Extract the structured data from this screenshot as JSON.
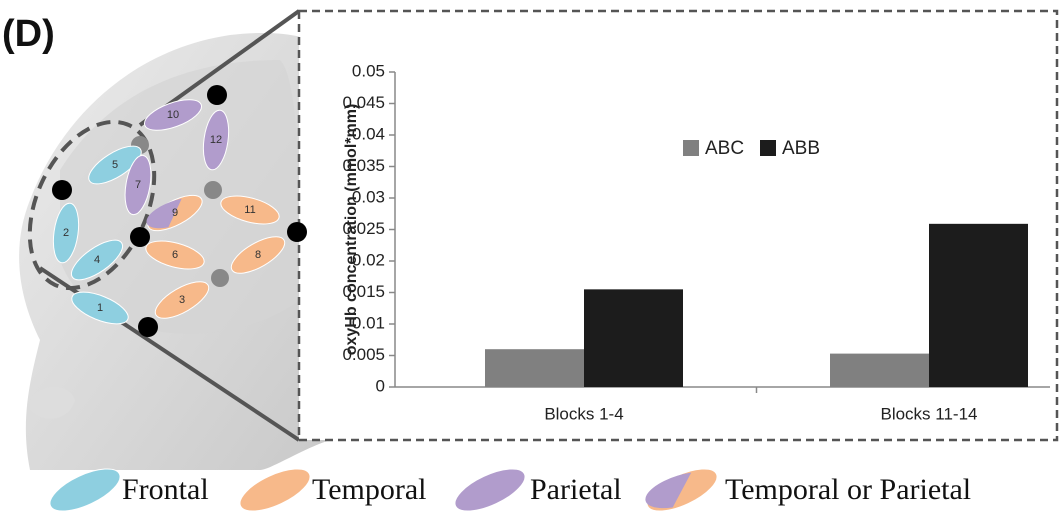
{
  "panel_label": "(D)",
  "brain": {
    "channels": [
      "1",
      "2",
      "3",
      "4",
      "5",
      "6",
      "7",
      "8",
      "9",
      "10",
      "11",
      "12"
    ],
    "regions": [
      "Frontal",
      "Temporal",
      "Parietal",
      "Temporal or Parietal"
    ]
  },
  "chart_data": {
    "type": "bar",
    "y_label": "oxyHb concentration (mmol*mm)",
    "categories": [
      "Blocks 1-4",
      "Blocks 11-14"
    ],
    "series": [
      {
        "name": "ABC",
        "color": "#808080",
        "values": [
          0.006,
          0.0053
        ]
      },
      {
        "name": "ABB",
        "color": "#1c1c1c",
        "values": [
          0.0155,
          0.0259
        ]
      }
    ],
    "ylim": [
      0,
      0.05
    ],
    "yticks": [
      0,
      0.005,
      0.01,
      0.015,
      0.02,
      0.025,
      0.03,
      0.035,
      0.04,
      0.045,
      0.05
    ]
  }
}
